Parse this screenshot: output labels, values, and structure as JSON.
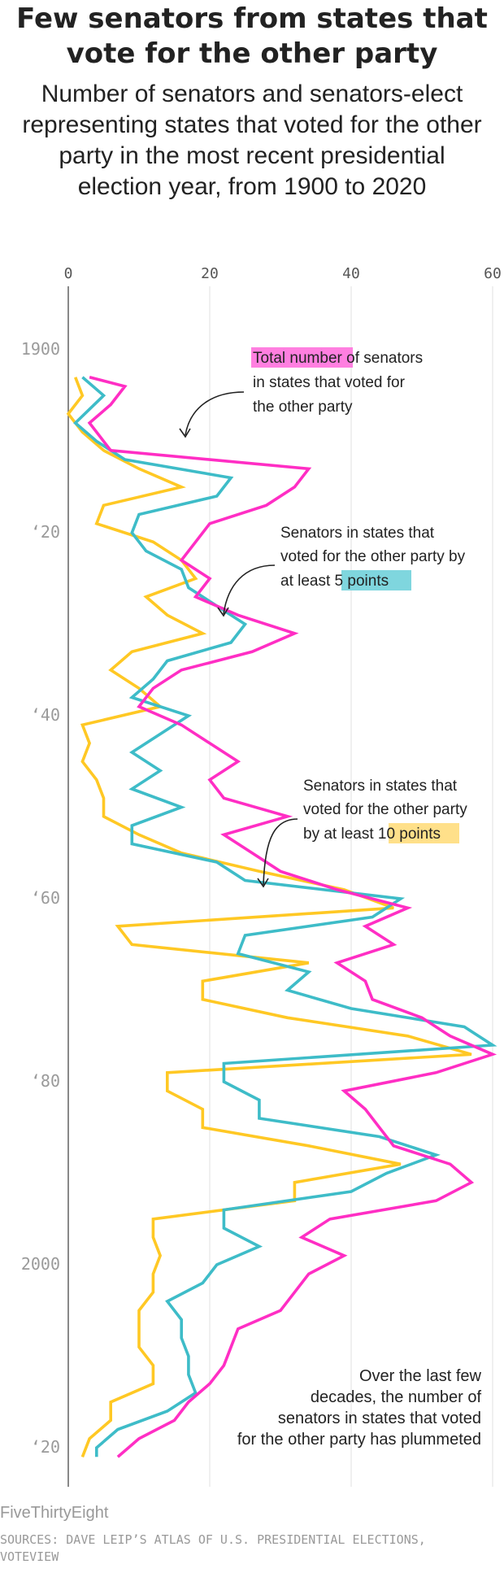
{
  "chart_data": {
    "type": "line",
    "title": "Few senators from states that vote for the other party",
    "subtitle": "Number of senators and senators-elect representing states that voted for the other party in the most recent presidential election year, from 1900 to 2020",
    "x_ticks": [
      0,
      20,
      40,
      60
    ],
    "xlim": [
      0,
      60
    ],
    "y_ticks": [
      {
        "year": 1900,
        "label": "1900"
      },
      {
        "year": 1920,
        "label": "‘20"
      },
      {
        "year": 1940,
        "label": "‘40"
      },
      {
        "year": 1960,
        "label": "‘60"
      },
      {
        "year": 1980,
        "label": "‘80"
      },
      {
        "year": 2000,
        "label": "2000"
      },
      {
        "year": 2020,
        "label": "‘20"
      }
    ],
    "ylim": [
      1896,
      2024
    ],
    "series": [
      {
        "name": "Total number of senators in states that voted for the other party",
        "color": "#ff2ec4",
        "points": [
          [
            1903,
            3
          ],
          [
            1904,
            8
          ],
          [
            1906,
            6
          ],
          [
            1908,
            3
          ],
          [
            1911,
            6
          ],
          [
            1913,
            34
          ],
          [
            1915,
            32
          ],
          [
            1917,
            28
          ],
          [
            1919,
            20
          ],
          [
            1921,
            18
          ],
          [
            1923,
            16
          ],
          [
            1925,
            20
          ],
          [
            1927,
            18
          ],
          [
            1929,
            24
          ],
          [
            1931,
            32
          ],
          [
            1933,
            26
          ],
          [
            1935,
            16
          ],
          [
            1937,
            12
          ],
          [
            1939,
            10
          ],
          [
            1941,
            16
          ],
          [
            1943,
            20
          ],
          [
            1945,
            24
          ],
          [
            1947,
            20
          ],
          [
            1949,
            22
          ],
          [
            1951,
            31
          ],
          [
            1953,
            22
          ],
          [
            1955,
            26
          ],
          [
            1957,
            30
          ],
          [
            1959,
            38
          ],
          [
            1961,
            48
          ],
          [
            1963,
            42
          ],
          [
            1965,
            46
          ],
          [
            1967,
            38
          ],
          [
            1969,
            42
          ],
          [
            1971,
            43
          ],
          [
            1973,
            50
          ],
          [
            1975,
            54
          ],
          [
            1977,
            60
          ],
          [
            1979,
            52
          ],
          [
            1981,
            39
          ],
          [
            1983,
            42
          ],
          [
            1985,
            44
          ],
          [
            1987,
            46
          ],
          [
            1989,
            54
          ],
          [
            1991,
            57
          ],
          [
            1993,
            52
          ],
          [
            1995,
            37
          ],
          [
            1997,
            33
          ],
          [
            1999,
            39
          ],
          [
            2001,
            34
          ],
          [
            2003,
            32
          ],
          [
            2005,
            30
          ],
          [
            2007,
            24
          ],
          [
            2009,
            23
          ],
          [
            2011,
            22
          ],
          [
            2013,
            20
          ],
          [
            2015,
            17
          ],
          [
            2017,
            15
          ],
          [
            2019,
            10
          ],
          [
            2021,
            7
          ]
        ]
      },
      {
        "name": "Senators in states that voted for the other party by at least 5 points",
        "color": "#3ebcc8",
        "points": [
          [
            1903,
            2
          ],
          [
            1905,
            5
          ],
          [
            1908,
            1
          ],
          [
            1910,
            4
          ],
          [
            1912,
            8
          ],
          [
            1914,
            23
          ],
          [
            1916,
            21
          ],
          [
            1918,
            10
          ],
          [
            1920,
            9
          ],
          [
            1922,
            11
          ],
          [
            1924,
            16
          ],
          [
            1926,
            17
          ],
          [
            1928,
            21
          ],
          [
            1930,
            25
          ],
          [
            1932,
            23
          ],
          [
            1934,
            14
          ],
          [
            1936,
            12
          ],
          [
            1938,
            9
          ],
          [
            1940,
            17
          ],
          [
            1942,
            13
          ],
          [
            1944,
            9
          ],
          [
            1946,
            13
          ],
          [
            1948,
            9
          ],
          [
            1950,
            16
          ],
          [
            1952,
            9
          ],
          [
            1954,
            9
          ],
          [
            1956,
            21
          ],
          [
            1958,
            25
          ],
          [
            1960,
            47
          ],
          [
            1962,
            43
          ],
          [
            1964,
            25
          ],
          [
            1966,
            24
          ],
          [
            1968,
            34
          ],
          [
            1970,
            31
          ],
          [
            1972,
            40
          ],
          [
            1974,
            56
          ],
          [
            1976,
            60
          ],
          [
            1978,
            22
          ],
          [
            1980,
            22
          ],
          [
            1982,
            27
          ],
          [
            1984,
            27
          ],
          [
            1986,
            44
          ],
          [
            1988,
            52
          ],
          [
            1990,
            45
          ],
          [
            1992,
            40
          ],
          [
            1994,
            22
          ],
          [
            1996,
            22
          ],
          [
            1998,
            27
          ],
          [
            2000,
            21
          ],
          [
            2002,
            19
          ],
          [
            2004,
            14
          ],
          [
            2006,
            16
          ],
          [
            2008,
            16
          ],
          [
            2010,
            17
          ],
          [
            2012,
            17
          ],
          [
            2014,
            18
          ],
          [
            2016,
            14
          ],
          [
            2018,
            7
          ],
          [
            2020,
            4
          ],
          [
            2021,
            4
          ]
        ]
      },
      {
        "name": "Senators in states that voted for the other party by at least 10 points",
        "color": "#ffc824",
        "points": [
          [
            1903,
            1
          ],
          [
            1905,
            2
          ],
          [
            1907,
            0
          ],
          [
            1909,
            2
          ],
          [
            1911,
            5
          ],
          [
            1913,
            10
          ],
          [
            1915,
            16
          ],
          [
            1917,
            5
          ],
          [
            1919,
            4
          ],
          [
            1921,
            12
          ],
          [
            1923,
            16
          ],
          [
            1925,
            18
          ],
          [
            1927,
            11
          ],
          [
            1929,
            14
          ],
          [
            1931,
            19
          ],
          [
            1933,
            9
          ],
          [
            1935,
            6
          ],
          [
            1937,
            10
          ],
          [
            1939,
            13
          ],
          [
            1941,
            2
          ],
          [
            1943,
            3
          ],
          [
            1945,
            2
          ],
          [
            1947,
            4
          ],
          [
            1949,
            5
          ],
          [
            1951,
            5
          ],
          [
            1953,
            10
          ],
          [
            1955,
            16
          ],
          [
            1957,
            27
          ],
          [
            1959,
            39
          ],
          [
            1961,
            46
          ],
          [
            1963,
            7
          ],
          [
            1965,
            9
          ],
          [
            1967,
            34
          ],
          [
            1969,
            19
          ],
          [
            1971,
            19
          ],
          [
            1973,
            31
          ],
          [
            1975,
            48
          ],
          [
            1977,
            57
          ],
          [
            1979,
            14
          ],
          [
            1981,
            14
          ],
          [
            1983,
            19
          ],
          [
            1985,
            19
          ],
          [
            1987,
            34
          ],
          [
            1989,
            47
          ],
          [
            1991,
            32
          ],
          [
            1993,
            32
          ],
          [
            1995,
            12
          ],
          [
            1997,
            12
          ],
          [
            1999,
            13
          ],
          [
            2001,
            12
          ],
          [
            2003,
            12
          ],
          [
            2005,
            10
          ],
          [
            2007,
            10
          ],
          [
            2009,
            10
          ],
          [
            2011,
            12
          ],
          [
            2013,
            12
          ],
          [
            2015,
            6
          ],
          [
            2017,
            6
          ],
          [
            2019,
            3
          ],
          [
            2021,
            2
          ]
        ]
      }
    ],
    "annotations": [
      {
        "highlight": "Total number",
        "line1_rest": " of senators",
        "line2": "in states that voted for",
        "line3": "the other party"
      },
      {
        "line1": "Senators in states that",
        "line2": "voted for the other party by",
        "line3_prefix": "at least ",
        "highlight": "5 points"
      },
      {
        "line1": "Senators in states that",
        "line2": "voted for the other party",
        "line3_prefix": "by at least ",
        "highlight": "10 points"
      },
      {
        "line1": "Over the last few",
        "line2": "decades, the number of",
        "line3": "senators in states that voted",
        "line4": "for the other party has plummeted"
      }
    ]
  },
  "footer": {
    "brand": "FiveThirtyEight",
    "sources": "SOURCES: DAVE LEIP’S ATLAS OF U.S. PRESIDENTIAL ELECTIONS, VOTEVIEW"
  }
}
